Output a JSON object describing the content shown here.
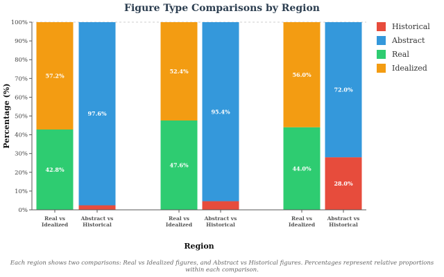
{
  "title": "Figure Type Comparisons by Region",
  "caption": "Each region shows two comparisons: Real vs Idealized figures, and Abstract vs Historical figures. Percentages represent relative proportions within each comparison.",
  "chart_data": {
    "type": "bar",
    "stacked": true,
    "xlabel": "Region",
    "ylabel": "Percentage (%)",
    "ylim": [
      0,
      100
    ],
    "yticks": [
      "0%",
      "10%",
      "20%",
      "30%",
      "40%",
      "50%",
      "60%",
      "70%",
      "80%",
      "90%",
      "100%"
    ],
    "grid": "dashed line at 100%",
    "legend_position": "right",
    "categories": [
      "Real vs Idealized",
      "Abstract vs Historical",
      "Real vs Idealized",
      "Abstract vs Historical",
      "Real vs Idealized",
      "Abstract vs Historical"
    ],
    "category_lines": [
      [
        "Real vs",
        "Idealized"
      ],
      [
        "Abstract vs",
        "Historical"
      ],
      [
        "Real vs",
        "Idealized"
      ],
      [
        "Abstract vs",
        "Historical"
      ],
      [
        "Real vs",
        "Idealized"
      ],
      [
        "Abstract vs",
        "Historical"
      ]
    ],
    "series": [
      {
        "name": "Historical",
        "color": "#e74c3c",
        "values": [
          null,
          2.4,
          null,
          4.6,
          null,
          28.0
        ],
        "labels": [
          null,
          null,
          null,
          null,
          null,
          "28.0%"
        ]
      },
      {
        "name": "Abstract",
        "color": "#3498db",
        "values": [
          null,
          97.6,
          null,
          95.4,
          null,
          72.0
        ],
        "labels": [
          null,
          "97.6%",
          null,
          "95.4%",
          null,
          "72.0%"
        ]
      },
      {
        "name": "Real",
        "color": "#2ecc71",
        "values": [
          42.8,
          null,
          47.6,
          null,
          44.0,
          null
        ],
        "labels": [
          "42.8%",
          null,
          "47.6%",
          null,
          "44.0%",
          null
        ]
      },
      {
        "name": "Idealized",
        "color": "#f39c12",
        "values": [
          57.2,
          null,
          52.4,
          null,
          56.0,
          null
        ],
        "labels": [
          "57.2%",
          null,
          "52.4%",
          null,
          "56.0%",
          null
        ]
      }
    ],
    "stack_order": [
      "Historical",
      "Abstract",
      "Real",
      "Idealized"
    ]
  },
  "legend_order": [
    "Historical",
    "Abstract",
    "Real",
    "Idealized"
  ]
}
